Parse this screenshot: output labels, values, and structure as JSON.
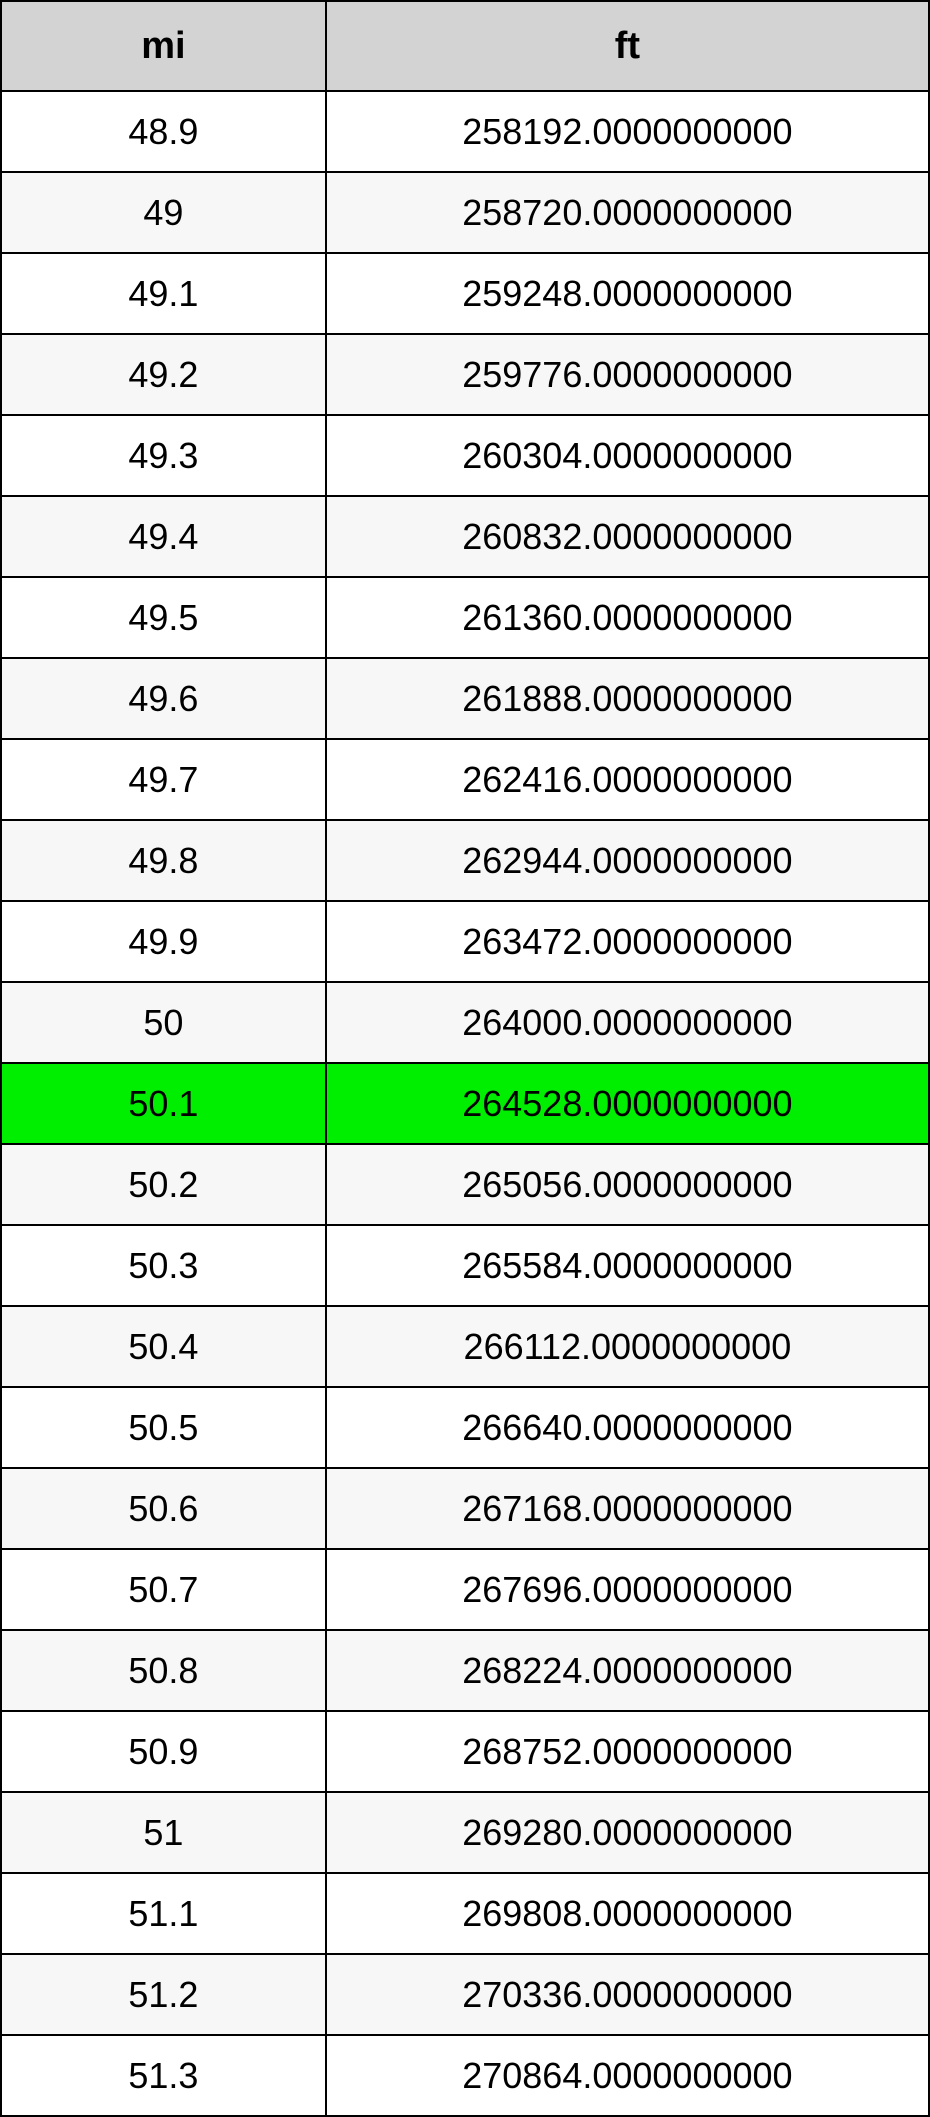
{
  "table": {
    "type": "table",
    "columns": [
      "mi",
      "ft"
    ],
    "column_widths_pct": [
      35,
      65
    ],
    "header_bg_color": "#d3d3d3",
    "header_font_size": 38,
    "header_font_weight": "bold",
    "cell_font_size": 36,
    "border_color": "#000000",
    "border_width": 2,
    "row_bg_odd": "#ffffff",
    "row_bg_even": "#f7f7f7",
    "highlight_bg": "#00ee00",
    "highlighted_row_index": 12,
    "rows": [
      {
        "mi": "48.9",
        "ft": "258192.0000000000"
      },
      {
        "mi": "49",
        "ft": "258720.0000000000"
      },
      {
        "mi": "49.1",
        "ft": "259248.0000000000"
      },
      {
        "mi": "49.2",
        "ft": "259776.0000000000"
      },
      {
        "mi": "49.3",
        "ft": "260304.0000000000"
      },
      {
        "mi": "49.4",
        "ft": "260832.0000000000"
      },
      {
        "mi": "49.5",
        "ft": "261360.0000000000"
      },
      {
        "mi": "49.6",
        "ft": "261888.0000000000"
      },
      {
        "mi": "49.7",
        "ft": "262416.0000000000"
      },
      {
        "mi": "49.8",
        "ft": "262944.0000000000"
      },
      {
        "mi": "49.9",
        "ft": "263472.0000000000"
      },
      {
        "mi": "50",
        "ft": "264000.0000000000"
      },
      {
        "mi": "50.1",
        "ft": "264528.0000000000"
      },
      {
        "mi": "50.2",
        "ft": "265056.0000000000"
      },
      {
        "mi": "50.3",
        "ft": "265584.0000000000"
      },
      {
        "mi": "50.4",
        "ft": "266112.0000000000"
      },
      {
        "mi": "50.5",
        "ft": "266640.0000000000"
      },
      {
        "mi": "50.6",
        "ft": "267168.0000000000"
      },
      {
        "mi": "50.7",
        "ft": "267696.0000000000"
      },
      {
        "mi": "50.8",
        "ft": "268224.0000000000"
      },
      {
        "mi": "50.9",
        "ft": "268752.0000000000"
      },
      {
        "mi": "51",
        "ft": "269280.0000000000"
      },
      {
        "mi": "51.1",
        "ft": "269808.0000000000"
      },
      {
        "mi": "51.2",
        "ft": "270336.0000000000"
      },
      {
        "mi": "51.3",
        "ft": "270864.0000000000"
      }
    ]
  }
}
